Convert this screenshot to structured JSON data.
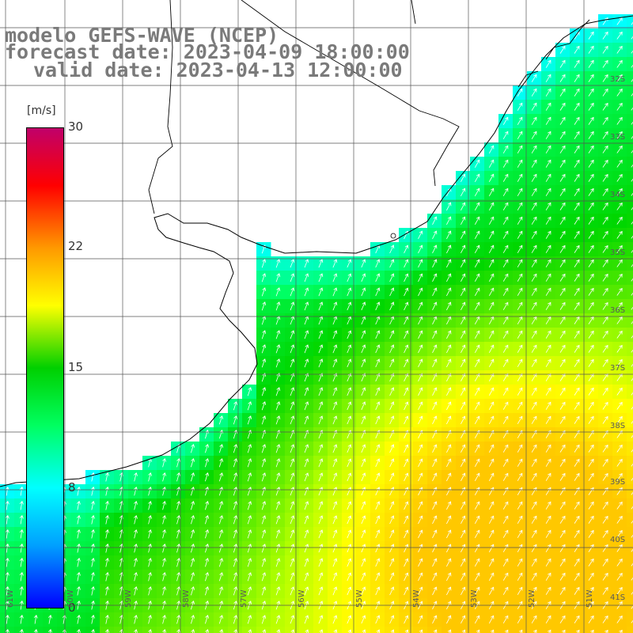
{
  "title": {
    "line1": "modelo GEFS-WAVE (NCEP)",
    "line2": "forecast date: 2023-04-09 18:00:00",
    "line3": "valid date: 2023-04-13 12:00:00"
  },
  "colorbar": {
    "unit": "[m/s]",
    "ticks": [
      "30",
      "22",
      "15",
      "8",
      "0"
    ],
    "range": [
      0,
      30
    ],
    "colors": [
      "#0000ff",
      "#00a0ff",
      "#00ffff",
      "#00ff60",
      "#00d000",
      "#ffff00",
      "#ff9900",
      "#ff0000",
      "#c0006a"
    ]
  },
  "lat_labels": [
    "32S",
    "33S",
    "34S",
    "35S",
    "36S",
    "37S",
    "38S",
    "39S",
    "40S",
    "41S"
  ],
  "lon_labels": [
    "61W",
    "60W",
    "59W",
    "58W",
    "57W",
    "56W",
    "55W",
    "54W",
    "53W",
    "52W",
    "51W"
  ],
  "colors": {
    "land": "#ffffff",
    "coastline": "#000000",
    "grid": "#555555",
    "arrow": "#ffffff",
    "title_text": "#7a7a7a"
  },
  "field_description": "wind speed field, approx 8-12 m/s near the coast rising to about 18-19 m/s in the southeast; arrows point mostly north-northeast"
}
